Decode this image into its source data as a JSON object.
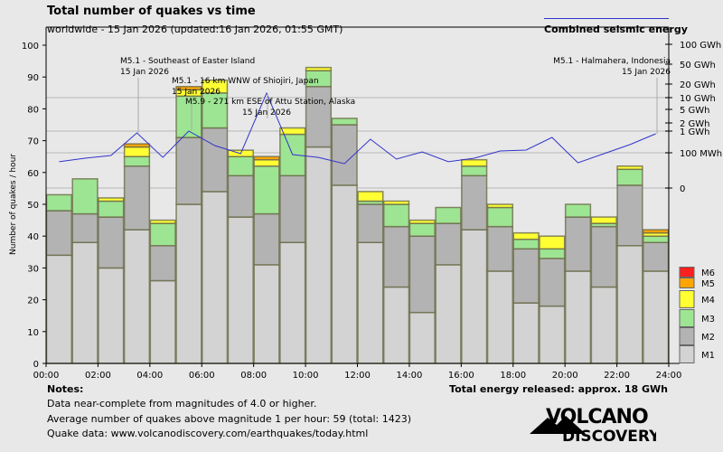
{
  "header": {
    "title": "Total number of quakes vs time",
    "subtitle": "worldwide - 15 Jan 2026 (updated:16 Jan 2026, 01:55 GMT)",
    "energy_legend": "Combined seismic energy"
  },
  "notes": {
    "title": "Notes:",
    "lines": [
      "Data near-complete from magnitudes of 4.0 or higher.",
      "Average number of quakes above magnitude 1 per hour: 59 (total: 1423)",
      "Quake data: www.volcanodiscovery.com/earthquakes/today.html"
    ],
    "total_energy": "Total energy released: approx. 18 GWh"
  },
  "logo": {
    "line1": "VOLCANO",
    "line2": "DISCOVERY"
  },
  "colors": {
    "M1": "#d3d3d3",
    "M2": "#b3b3b3",
    "M3": "#9de593",
    "M4": "#ffff33",
    "M5": "#ffa500",
    "M6": "#ff2020",
    "energy": "#3333cc",
    "bar_border": "#6b6b4a"
  },
  "chart_data": {
    "type": "bar",
    "stacked": true,
    "title": "Total number of quakes vs time",
    "ylabel": "Number of quakes / hour",
    "ylim": [
      0,
      100
    ],
    "yticks": [
      "0",
      "10",
      "20",
      "30",
      "40",
      "50",
      "60",
      "70",
      "80",
      "90",
      "100"
    ],
    "xticks": [
      "00:00",
      "02:00",
      "04:00",
      "06:00",
      "08:00",
      "10:00",
      "12:00",
      "14:00",
      "16:00",
      "18:00",
      "20:00",
      "22:00",
      "24:00"
    ],
    "categories": [
      "0",
      "1",
      "2",
      "3",
      "4",
      "5",
      "6",
      "7",
      "8",
      "9",
      "10",
      "11",
      "12",
      "13",
      "14",
      "15",
      "16",
      "17",
      "18",
      "19",
      "20",
      "21",
      "22",
      "23"
    ],
    "series": [
      {
        "name": "M1",
        "values": [
          34,
          38,
          30,
          42,
          26,
          50,
          54,
          46,
          31,
          38,
          68,
          56,
          38,
          24,
          16,
          31,
          42,
          29,
          19,
          18,
          29,
          24,
          37,
          29
        ]
      },
      {
        "name": "M2",
        "values": [
          14,
          9,
          16,
          20,
          11,
          21,
          20,
          13,
          16,
          21,
          19,
          19,
          12,
          19,
          24,
          13,
          17,
          14,
          17,
          15,
          17,
          19,
          19,
          9
        ]
      },
      {
        "name": "M3",
        "values": [
          5,
          11,
          5,
          3,
          7,
          13,
          11,
          6,
          15,
          13,
          5,
          2,
          1,
          7,
          4,
          5,
          3,
          6,
          3,
          3,
          4,
          1,
          5,
          2
        ]
      },
      {
        "name": "M4",
        "values": [
          0,
          0,
          1,
          3,
          1,
          2,
          4,
          2,
          2,
          2,
          1,
          0,
          3,
          1,
          1,
          0,
          2,
          1,
          2,
          4,
          0,
          2,
          1,
          1
        ]
      },
      {
        "name": "M5",
        "values": [
          0,
          0,
          0,
          1,
          0,
          1,
          0,
          0,
          1,
          0,
          0,
          0,
          0,
          0,
          0,
          0,
          0,
          0,
          0,
          0,
          0,
          0,
          0,
          1
        ]
      },
      {
        "name": "M6",
        "values": [
          0,
          0,
          0,
          0,
          0,
          0,
          0,
          0,
          0,
          0,
          0,
          0,
          0,
          0,
          0,
          0,
          0,
          0,
          0,
          0,
          0,
          0,
          0,
          0
        ]
      }
    ],
    "legend": [
      "M6",
      "M5",
      "M4",
      "M3",
      "M2",
      "M1"
    ],
    "legend_position": "right-bottom",
    "energy_series": {
      "name": "Combined seismic energy",
      "unit": "MWh",
      "scale": "log",
      "values": [
        31,
        49,
        70,
        825,
        55,
        1000,
        215,
        89,
        12600,
        79,
        55,
        24,
        420,
        44,
        110,
        31,
        49,
        121,
        133,
        510,
        27,
        89,
        237,
        750
      ]
    },
    "energy_ticks": [
      "100 GWh",
      "50 GWh",
      "20 GWh",
      "10 GWh",
      "5 GWh",
      "2 GWh",
      "1 GWh",
      "100 MWh",
      "0"
    ],
    "annotations": [
      {
        "text": "M5.1 - Southeast of Easter Island",
        "date": "15 Jan 2026"
      },
      {
        "text": "M5.1 - 16 km WNW of Shiojiri, Japan",
        "date": "15 Jan 2026"
      },
      {
        "text": "M5.9 - 271 km ESE of Attu Station, Alaska",
        "date": "15 Jan 2026"
      },
      {
        "text": "M5.1 - Halmahera, Indonesia",
        "date": "15 Jan 2026"
      }
    ]
  }
}
